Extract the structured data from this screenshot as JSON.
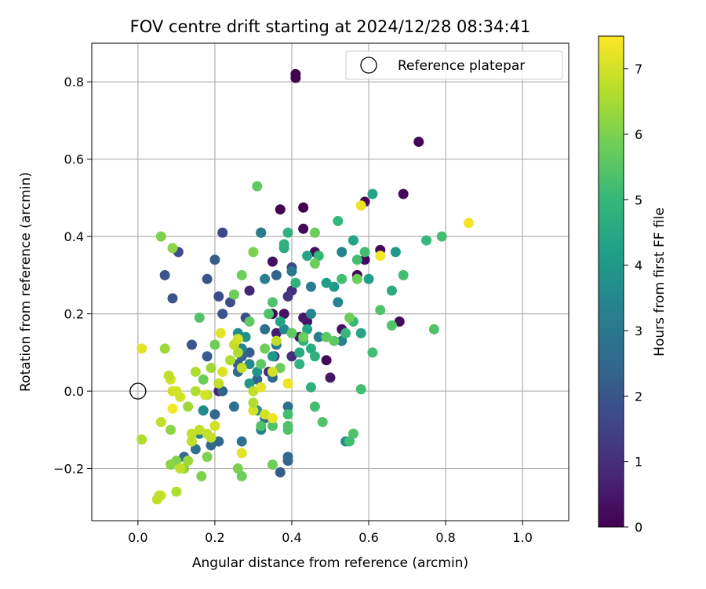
{
  "chart_data": {
    "type": "scatter",
    "title": "FOV centre drift starting at 2024/12/28 08:34:41",
    "xlabel": "Angular distance from reference (arcmin)",
    "ylabel": "Rotation from reference (arcmin)",
    "xlim": [
      -0.12,
      1.12
    ],
    "ylim": [
      -0.335,
      0.9
    ],
    "xticks": [
      0.0,
      0.2,
      0.4,
      0.6,
      0.8,
      1.0
    ],
    "xtick_labels": [
      "0.0",
      "0.2",
      "0.4",
      "0.6",
      "0.8",
      "1.0"
    ],
    "yticks": [
      -0.2,
      0.0,
      0.2,
      0.4,
      0.6,
      0.8
    ],
    "ytick_labels": [
      "−0.2",
      "0.0",
      "0.2",
      "0.4",
      "0.6",
      "0.8"
    ],
    "grid": true,
    "legend": {
      "position": "top-right",
      "label": "Reference platepar"
    },
    "reference": {
      "x": 0.0,
      "y": 0.0
    },
    "colorbar": {
      "label": "Hours from first FF file",
      "range": [
        0,
        7.5
      ],
      "ticks": [
        0,
        1,
        2,
        3,
        4,
        5,
        6,
        7
      ],
      "tick_labels": [
        "0",
        "1",
        "2",
        "3",
        "4",
        "5",
        "6",
        "7"
      ],
      "colormap": "viridis"
    },
    "colormap_stops": [
      "#440154",
      "#482878",
      "#3e4989",
      "#31688e",
      "#26828e",
      "#1f9e89",
      "#35b779",
      "#6ece58",
      "#b5de2b",
      "#fde725"
    ],
    "series": [
      {
        "points": [
          [
            0.41,
            0.81,
            0.0
          ],
          [
            0.73,
            0.645,
            0.1
          ],
          [
            0.69,
            0.51,
            0.1
          ],
          [
            0.59,
            0.49,
            0.2
          ],
          [
            0.37,
            0.47,
            0.0
          ],
          [
            0.43,
            0.475,
            0.0
          ],
          [
            0.43,
            0.42,
            0.1
          ],
          [
            0.57,
            0.3,
            0.2
          ],
          [
            0.63,
            0.365,
            0.2
          ],
          [
            0.59,
            0.34,
            0.2
          ],
          [
            0.35,
            0.335,
            0.3
          ],
          [
            0.68,
            0.18,
            0.2
          ],
          [
            0.49,
            0.08,
            0.1
          ],
          [
            0.53,
            0.16,
            0.3
          ],
          [
            0.35,
            0.2,
            0.2
          ],
          [
            0.38,
            0.2,
            0.4
          ],
          [
            0.36,
            0.15,
            0.6
          ],
          [
            0.44,
            0.18,
            0.4
          ],
          [
            0.29,
            0.26,
            0.8
          ],
          [
            0.42,
            0.14,
            0.6
          ],
          [
            0.5,
            0.035,
            0.5
          ],
          [
            0.4,
            0.26,
            1.0
          ],
          [
            0.39,
            0.245,
            1.2
          ],
          [
            0.43,
            0.19,
            0.5
          ],
          [
            0.34,
            0.05,
            0.9
          ],
          [
            0.21,
            0.0,
            0.8
          ],
          [
            0.41,
            0.82,
            0.0
          ],
          [
            0.355,
            0.09,
            1.2
          ],
          [
            0.4,
            0.09,
            1.0
          ],
          [
            0.46,
            0.36,
            0.3
          ],
          [
            0.22,
            0.41,
            1.6
          ],
          [
            0.32,
            0.41,
            1.4
          ],
          [
            0.4,
            0.32,
            1.6
          ],
          [
            0.07,
            0.3,
            2.0
          ],
          [
            0.09,
            0.24,
            2.0
          ],
          [
            0.105,
            0.36,
            1.8
          ],
          [
            0.18,
            0.29,
            2.0
          ],
          [
            0.21,
            0.245,
            1.8
          ],
          [
            0.24,
            0.23,
            1.8
          ],
          [
            0.22,
            0.2,
            2.0
          ],
          [
            0.28,
            0.19,
            1.7
          ],
          [
            0.2,
            0.34,
            2.2
          ],
          [
            0.36,
            0.3,
            2.4
          ],
          [
            0.29,
            0.1,
            2.2
          ],
          [
            0.14,
            0.12,
            2.0
          ],
          [
            0.18,
            0.09,
            2.2
          ],
          [
            0.22,
            0.0,
            2.4
          ],
          [
            0.26,
            0.07,
            2.2
          ],
          [
            0.31,
            0.03,
            2.4
          ],
          [
            0.35,
            0.035,
            2.6
          ],
          [
            0.39,
            -0.18,
            2.4
          ],
          [
            0.37,
            -0.21,
            2.2
          ],
          [
            0.39,
            -0.17,
            2.6
          ],
          [
            0.33,
            -0.07,
            2.6
          ],
          [
            0.27,
            -0.13,
            2.8
          ],
          [
            0.17,
            -0.05,
            2.6
          ],
          [
            0.2,
            -0.06,
            2.5
          ],
          [
            0.19,
            -0.14,
            2.6
          ],
          [
            0.21,
            -0.13,
            2.4
          ],
          [
            0.15,
            -0.15,
            2.8
          ],
          [
            0.12,
            -0.17,
            2.6
          ],
          [
            0.25,
            -0.04,
            2.8
          ],
          [
            0.26,
            0.05,
            2.6
          ],
          [
            0.27,
            0.09,
            2.4
          ],
          [
            0.33,
            0.16,
            2.7
          ],
          [
            0.36,
            0.12,
            3.0
          ],
          [
            0.39,
            -0.04,
            2.8
          ],
          [
            0.4,
            0.31,
            3.0
          ],
          [
            0.33,
            0.29,
            3.2
          ],
          [
            0.32,
            0.41,
            3.1
          ],
          [
            0.45,
            0.27,
            3.2
          ],
          [
            0.47,
            0.14,
            3.2
          ],
          [
            0.52,
            0.23,
            3.4
          ],
          [
            0.53,
            0.13,
            3.2
          ],
          [
            0.53,
            0.36,
            3.4
          ],
          [
            0.45,
            0.2,
            3.4
          ],
          [
            0.38,
            0.16,
            3.5
          ],
          [
            0.27,
            0.11,
            3.4
          ],
          [
            0.29,
            0.07,
            3.6
          ],
          [
            0.26,
            0.15,
            3.6
          ],
          [
            0.16,
            -0.11,
            3.4
          ],
          [
            0.17,
            -0.05,
            3.6
          ],
          [
            0.19,
            -0.12,
            3.4
          ],
          [
            0.31,
            -0.05,
            3.6
          ],
          [
            0.32,
            -0.1,
            3.4
          ],
          [
            0.28,
            0.14,
            3.8
          ],
          [
            0.31,
            0.05,
            3.8
          ],
          [
            0.35,
            0.09,
            4.0
          ],
          [
            0.29,
            0.02,
            4.0
          ],
          [
            0.54,
            -0.13,
            3.6
          ],
          [
            0.51,
            0.27,
            4.0
          ],
          [
            0.49,
            0.28,
            4.2
          ],
          [
            0.56,
            0.39,
            4.2
          ],
          [
            0.67,
            0.36,
            4.0
          ],
          [
            0.61,
            0.51,
            4.4
          ],
          [
            0.6,
            0.29,
            4.2
          ],
          [
            0.66,
            0.26,
            4.6
          ],
          [
            0.58,
            0.15,
            4.4
          ],
          [
            0.56,
            0.39,
            4.4
          ],
          [
            0.44,
            0.35,
            4.4
          ],
          [
            0.44,
            0.16,
            4.4
          ],
          [
            0.42,
            0.1,
            4.6
          ],
          [
            0.38,
            0.37,
            4.6
          ],
          [
            0.38,
            0.38,
            4.8
          ],
          [
            0.37,
            0.18,
            4.4
          ],
          [
            0.39,
            0.41,
            4.8
          ],
          [
            0.41,
            0.28,
            4.8
          ],
          [
            0.45,
            0.11,
            4.6
          ],
          [
            0.42,
            0.07,
            4.8
          ],
          [
            0.43,
            0.13,
            4.8
          ],
          [
            0.46,
            0.09,
            4.8
          ],
          [
            0.45,
            0.01,
            4.8
          ],
          [
            0.47,
            0.35,
            5.0
          ],
          [
            0.52,
            0.44,
            5.0
          ],
          [
            0.57,
            0.34,
            5.2
          ],
          [
            0.53,
            0.29,
            5.2
          ],
          [
            0.56,
            0.18,
            5.0
          ],
          [
            0.54,
            0.15,
            5.0
          ],
          [
            0.59,
            0.36,
            5.2
          ],
          [
            0.61,
            0.1,
            5.2
          ],
          [
            0.63,
            0.21,
            5.4
          ],
          [
            0.66,
            0.17,
            5.4
          ],
          [
            0.69,
            0.3,
            5.2
          ],
          [
            0.75,
            0.39,
            5.0
          ],
          [
            0.79,
            0.4,
            5.2
          ],
          [
            0.77,
            0.16,
            5.4
          ],
          [
            0.58,
            0.005,
            5.2
          ],
          [
            0.56,
            -0.11,
            5.4
          ],
          [
            0.55,
            -0.13,
            5.2
          ],
          [
            0.48,
            -0.08,
            5.4
          ],
          [
            0.46,
            -0.04,
            5.2
          ],
          [
            0.39,
            -0.06,
            5.2
          ],
          [
            0.39,
            -0.09,
            5.4
          ],
          [
            0.39,
            -0.1,
            5.4
          ],
          [
            0.35,
            -0.09,
            5.4
          ],
          [
            0.32,
            -0.09,
            5.4
          ],
          [
            0.35,
            0.23,
            5.4
          ],
          [
            0.32,
            0.07,
            5.6
          ],
          [
            0.33,
            0.11,
            5.8
          ],
          [
            0.29,
            0.18,
            5.6
          ],
          [
            0.34,
            0.2,
            5.4
          ],
          [
            0.37,
            0.06,
            5.8
          ],
          [
            0.4,
            0.15,
            5.6
          ],
          [
            0.43,
            0.14,
            5.8
          ],
          [
            0.46,
            0.33,
            5.8
          ],
          [
            0.49,
            0.14,
            5.6
          ],
          [
            0.51,
            0.13,
            5.6
          ],
          [
            0.55,
            0.19,
            5.8
          ],
          [
            0.57,
            0.29,
            5.8
          ],
          [
            0.16,
            0.19,
            5.4
          ],
          [
            0.17,
            0.03,
            5.8
          ],
          [
            0.2,
            0.12,
            5.8
          ],
          [
            0.25,
            0.25,
            5.8
          ],
          [
            0.27,
            0.3,
            5.8
          ],
          [
            0.31,
            0.53,
            5.6
          ],
          [
            0.3,
            0.36,
            6.0
          ],
          [
            0.46,
            0.41,
            5.8
          ],
          [
            0.35,
            -0.19,
            5.8
          ],
          [
            0.27,
            -0.22,
            5.8
          ],
          [
            0.26,
            -0.2,
            6.0
          ],
          [
            0.18,
            -0.17,
            6.0
          ],
          [
            0.165,
            -0.22,
            6.0
          ],
          [
            0.12,
            -0.2,
            6.2
          ],
          [
            0.1,
            -0.18,
            6.0
          ],
          [
            0.06,
            0.4,
            6.0
          ],
          [
            0.09,
            0.37,
            6.2
          ],
          [
            0.085,
            -0.19,
            6.2
          ],
          [
            0.085,
            -0.1,
            6.2
          ],
          [
            0.07,
            0.11,
            6.4
          ],
          [
            0.13,
            -0.04,
            6.4
          ],
          [
            0.15,
            0.05,
            6.6
          ],
          [
            0.15,
            0.0,
            6.6
          ],
          [
            0.18,
            -0.01,
            6.6
          ],
          [
            0.19,
            0.06,
            6.4
          ],
          [
            0.21,
            0.02,
            6.8
          ],
          [
            0.24,
            0.08,
            6.6
          ],
          [
            0.26,
            0.1,
            6.6
          ],
          [
            0.25,
            0.12,
            6.8
          ],
          [
            0.26,
            0.135,
            7.0
          ],
          [
            0.3,
            0.0,
            6.8
          ],
          [
            0.27,
            0.06,
            6.8
          ],
          [
            0.3,
            -0.05,
            7.0
          ],
          [
            0.3,
            -0.03,
            6.6
          ],
          [
            0.33,
            -0.06,
            7.0
          ],
          [
            0.36,
            0.13,
            6.8
          ],
          [
            0.35,
            0.05,
            7.0
          ],
          [
            0.39,
            0.02,
            7.2
          ],
          [
            0.35,
            -0.07,
            7.3
          ],
          [
            0.32,
            0.01,
            7.2
          ],
          [
            0.215,
            0.15,
            7.2
          ],
          [
            0.22,
            0.05,
            7.2
          ],
          [
            0.2,
            -0.09,
            7.0
          ],
          [
            0.19,
            -0.12,
            6.8
          ],
          [
            0.18,
            -0.11,
            6.8
          ],
          [
            0.16,
            -0.1,
            6.8
          ],
          [
            0.14,
            -0.13,
            6.8
          ],
          [
            0.13,
            -0.18,
            6.4
          ],
          [
            0.11,
            -0.2,
            6.6
          ],
          [
            0.14,
            -0.11,
            6.8
          ],
          [
            0.1,
            -0.26,
            6.6
          ],
          [
            0.06,
            -0.27,
            7.0
          ],
          [
            0.05,
            -0.28,
            6.8
          ],
          [
            0.055,
            -0.27,
            6.8
          ],
          [
            0.01,
            -0.125,
            6.6
          ],
          [
            0.06,
            -0.08,
            6.8
          ],
          [
            0.09,
            0.0,
            7.0
          ],
          [
            0.085,
            0.03,
            7.0
          ],
          [
            0.08,
            0.04,
            6.8
          ],
          [
            0.1,
            0.0,
            7.0
          ],
          [
            0.11,
            -0.015,
            7.0
          ],
          [
            0.09,
            -0.045,
            7.4
          ],
          [
            0.01,
            0.11,
            7.2
          ],
          [
            0.175,
            -0.01,
            7.0
          ],
          [
            0.11,
            -0.2,
            6.8
          ],
          [
            0.27,
            -0.16,
            7.2
          ],
          [
            0.58,
            0.48,
            7.3
          ],
          [
            0.63,
            0.35,
            7.4
          ],
          [
            0.86,
            0.435,
            7.4
          ],
          [
            0.39,
            0.02,
            7.3
          ],
          [
            0.22,
            0.05,
            7.1
          ]
        ]
      }
    ]
  }
}
